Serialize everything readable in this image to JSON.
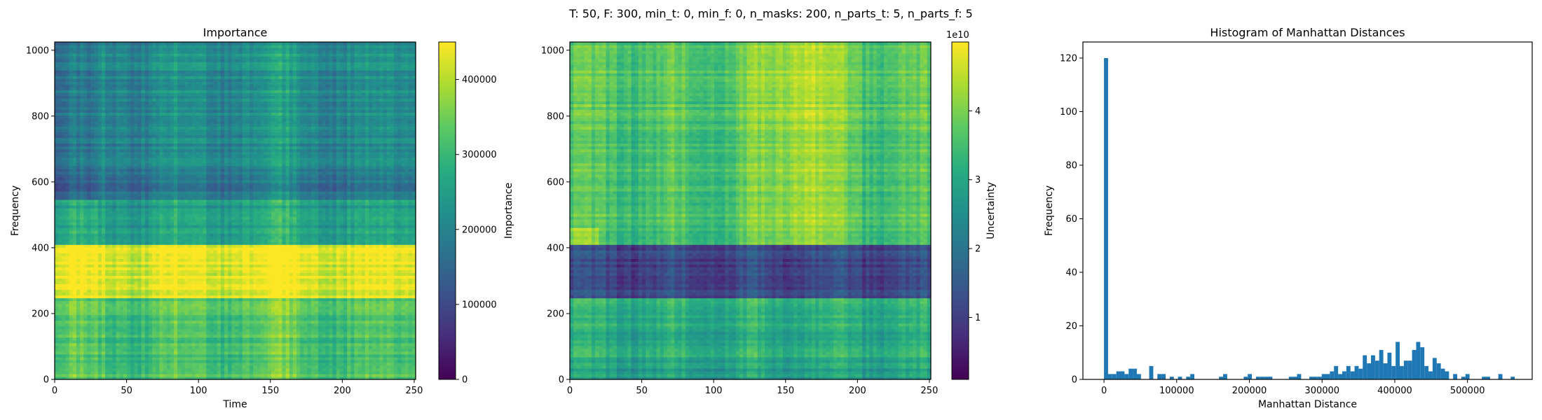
{
  "suptitle": "T: 50, F: 300, min_t: 0, min_f: 0, n_masks: 200, n_parts_t: 5, n_parts_f: 5",
  "chart_data": [
    {
      "type": "heatmap",
      "title": "Importance",
      "xlabel": "Time",
      "ylabel": "Frequency",
      "xlim": [
        0,
        251
      ],
      "ylim": [
        0,
        1025
      ],
      "xticks": [
        0,
        50,
        100,
        150,
        200,
        250
      ],
      "yticks": [
        0,
        200,
        400,
        600,
        800,
        1000
      ],
      "colormap": "viridis",
      "colorbar": {
        "label": "Importance",
        "range": [
          0,
          450000
        ],
        "ticks": [
          0,
          100000,
          200000,
          300000,
          400000
        ],
        "tick_labels": [
          "0",
          "100000",
          "200000",
          "300000",
          "400000"
        ]
      },
      "frequency_bands": [
        {
          "f": [
            0,
            250
          ],
          "mean": 0.7
        },
        {
          "f": [
            250,
            410
          ],
          "mean": 0.96
        },
        {
          "f": [
            410,
            550
          ],
          "mean": 0.55
        },
        {
          "f": [
            550,
            650
          ],
          "mean": 0.38
        },
        {
          "f": [
            650,
            720
          ],
          "mean": 0.45
        },
        {
          "f": [
            720,
            1025
          ],
          "mean": 0.48
        }
      ]
    },
    {
      "type": "heatmap",
      "title": "",
      "xlabel": "",
      "ylabel": "",
      "xlim": [
        0,
        251
      ],
      "ylim": [
        0,
        1025
      ],
      "xticks": [
        0,
        50,
        100,
        150,
        200,
        250
      ],
      "yticks": [
        0,
        200,
        400,
        600,
        800,
        1000
      ],
      "colormap": "viridis",
      "colorbar": {
        "label": "Uncertainty",
        "range": [
          0.1,
          5.0
        ],
        "ticks": [
          1,
          2,
          3,
          4
        ],
        "tick_labels": [
          "1",
          "2",
          "3",
          "4"
        ],
        "offset_text": "1e10"
      },
      "frequency_bands": [
        {
          "f": [
            0,
            40
          ],
          "mean": 0.55
        },
        {
          "f": [
            40,
            250
          ],
          "mean": 0.6
        },
        {
          "f": [
            250,
            410
          ],
          "mean": 0.2
        },
        {
          "f": [
            410,
            1025
          ],
          "mean": 0.72
        }
      ]
    },
    {
      "type": "bar",
      "title": "Histogram of Manhattan Distances",
      "xlabel": "Manhattan Distance",
      "ylabel": "Frequency",
      "xlim": [
        -29000,
        589000
      ],
      "ylim": [
        0,
        126
      ],
      "xticks": [
        0,
        100000,
        200000,
        300000,
        400000,
        500000
      ],
      "xtick_labels": [
        "0",
        "100000",
        "200000",
        "300000",
        "400000",
        "500000"
      ],
      "yticks": [
        0,
        20,
        40,
        60,
        80,
        100,
        120
      ],
      "bar_color": "#1f77b4",
      "bin_start": 0,
      "bin_width": 5650,
      "counts": [
        120,
        2,
        2,
        3,
        3,
        2,
        4,
        4,
        2,
        0,
        0,
        5,
        0,
        2,
        2,
        0,
        1,
        0,
        1,
        0,
        1,
        2,
        0,
        0,
        0,
        0,
        0,
        0,
        1,
        2,
        0,
        0,
        0,
        0,
        1,
        2,
        0,
        1,
        1,
        1,
        1,
        0,
        0,
        0,
        0,
        1,
        1,
        2,
        0,
        0,
        1,
        1,
        1,
        2,
        2,
        3,
        5,
        2,
        3,
        5,
        3,
        5,
        4,
        9,
        6,
        9,
        7,
        11,
        6,
        10,
        5,
        14,
        5,
        7,
        7,
        11,
        14,
        12,
        5,
        3,
        8,
        6,
        4,
        3,
        0,
        2,
        0,
        1,
        2,
        0,
        0,
        0,
        1,
        1,
        0,
        0,
        2,
        0,
        0,
        1
      ]
    }
  ]
}
